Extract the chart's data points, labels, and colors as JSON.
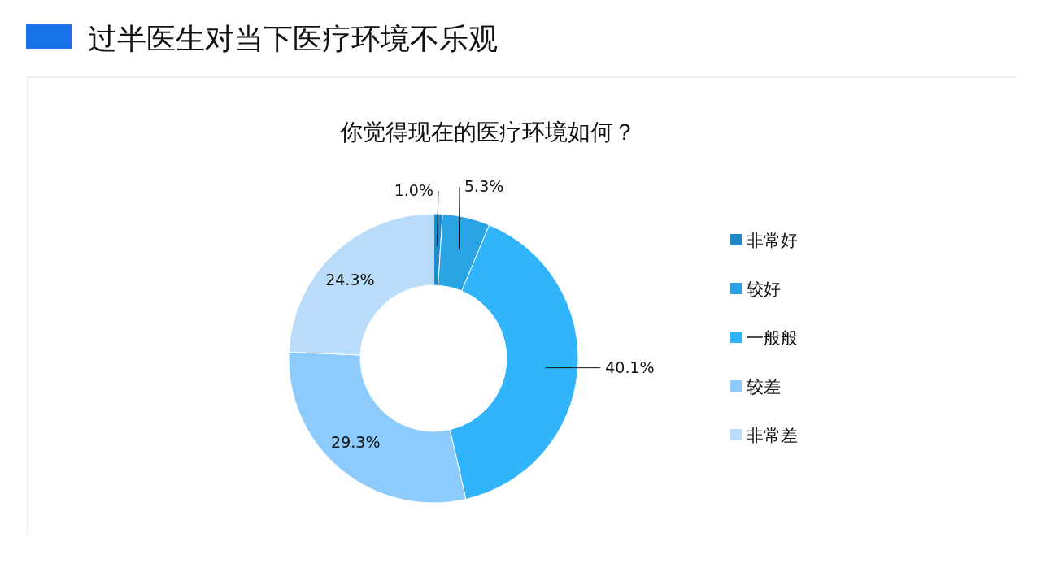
{
  "chart_data": {
    "type": "donut",
    "title": "过半医生对当下医疗环境不乐观",
    "subtitle": "你觉得现在的医疗环境如何？",
    "categories": [
      "非常好",
      "较好",
      "一般般",
      "较差",
      "非常差"
    ],
    "values": [
      1.0,
      5.3,
      40.1,
      29.3,
      24.3
    ],
    "colors": [
      "#2089c8",
      "#29a3e3",
      "#30b5fd",
      "#8ccbfb",
      "#badcfb"
    ],
    "value_labels": [
      "1.0%",
      "5.3%",
      "40.1%",
      "29.3%",
      "24.3%"
    ],
    "legend": "right"
  }
}
